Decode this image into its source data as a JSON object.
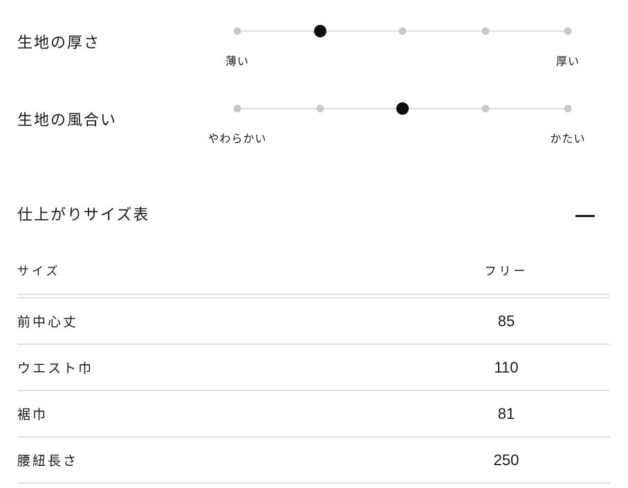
{
  "scales": [
    {
      "label": "生地の厚さ",
      "left_label": "薄い",
      "right_label": "厚い",
      "steps": 5,
      "active_step": 2
    },
    {
      "label": "生地の風合い",
      "left_label": "やわらかい",
      "right_label": "かたい",
      "steps": 5,
      "active_step": 3
    }
  ],
  "size_section": {
    "title": "仕上がりサイズ表",
    "collapse_icon": "minus-icon",
    "table": {
      "columns": [
        "サイズ",
        "フリー"
      ],
      "rows": [
        {
          "label": "前中心丈",
          "value": "85"
        },
        {
          "label": "ウエスト巾",
          "value": "110"
        },
        {
          "label": "裾巾",
          "value": "81"
        },
        {
          "label": "腰紐長さ",
          "value": "250"
        }
      ]
    }
  },
  "colors": {
    "text": "#1a1a1a",
    "inactive_dot": "#c9c9c9",
    "active_dot": "#0f0f0f",
    "track": "#dcdcdc",
    "separator": "#e0e0e0"
  }
}
